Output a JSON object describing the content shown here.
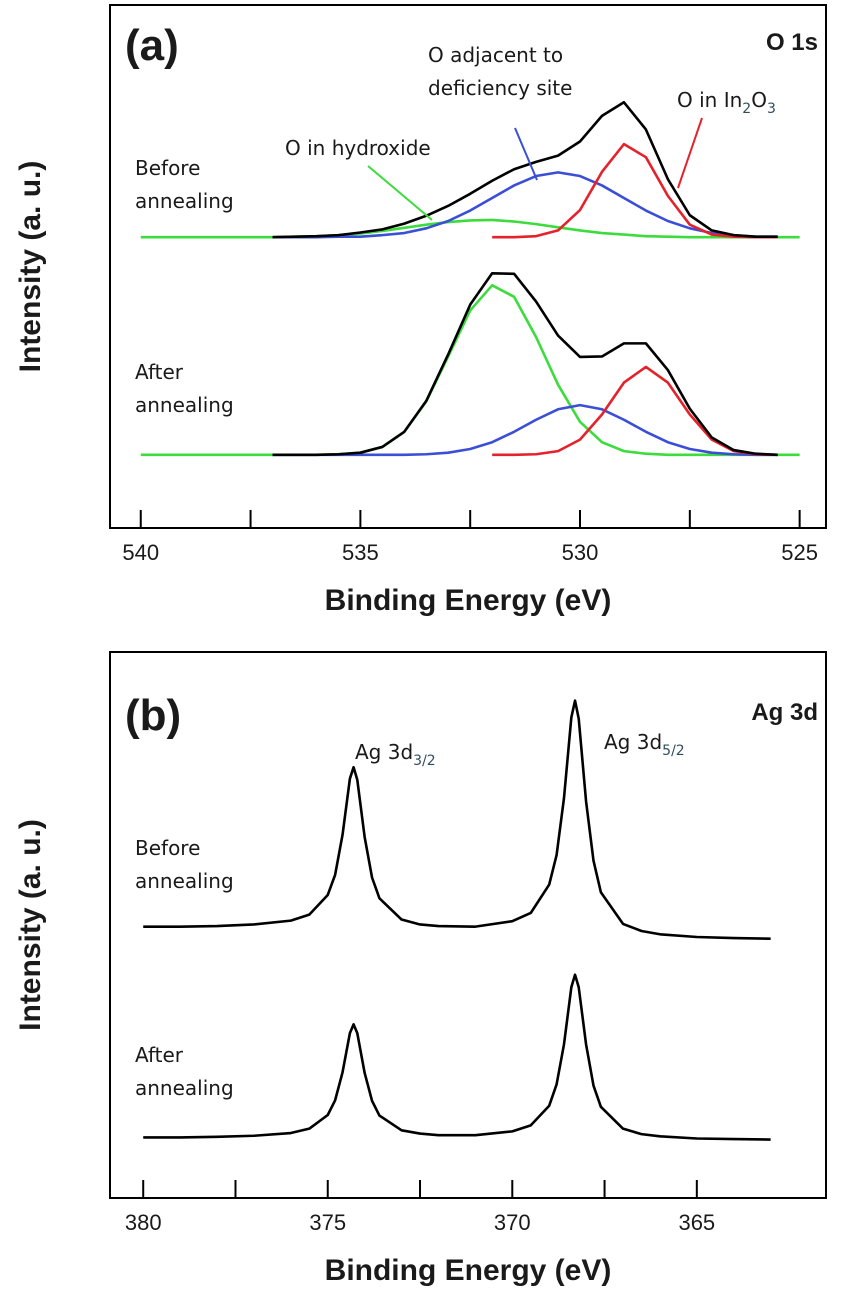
{
  "chart_data": [
    {
      "type": "line",
      "panel_label": "(a)",
      "spectrum_label": "O 1s",
      "x_label": "Binding Energy (eV)",
      "y_label": "Intensity (a. u.)",
      "xlim": [
        540.7,
        524.4
      ],
      "xticks": [
        540,
        535,
        530,
        525
      ],
      "xminorticks": [
        537.5,
        532.5,
        527.5
      ],
      "ylim": [
        0,
        100
      ],
      "x": [
        540,
        539.5,
        539,
        538.5,
        538,
        537.5,
        537,
        536.5,
        536,
        535.5,
        535,
        534.5,
        534,
        533.5,
        533,
        532.5,
        532,
        531.5,
        531,
        530.5,
        530,
        529.5,
        529,
        528.5,
        528,
        527.5,
        527,
        526.5,
        526,
        525.5,
        525
      ],
      "series": [
        {
          "color": "#3ddc3d",
          "values": [
            55.6,
            55.6,
            55.6,
            55.6,
            55.6,
            55.6,
            55.6,
            55.7,
            55.8,
            56.0,
            56.3,
            56.8,
            57.4,
            58.0,
            58.5,
            58.8,
            58.9,
            58.6,
            58.1,
            57.5,
            56.9,
            56.4,
            56.1,
            55.8,
            55.7,
            55.6,
            55.6,
            55.6,
            55.6,
            55.6,
            55.6
          ]
        },
        {
          "color": "#3b4fd6",
          "values": [
            null,
            null,
            null,
            null,
            null,
            null,
            55.6,
            55.6,
            55.6,
            55.7,
            55.7,
            56.0,
            56.4,
            57.3,
            58.7,
            60.7,
            63.1,
            65.5,
            67.3,
            68.0,
            67.3,
            65.5,
            63.1,
            60.7,
            58.7,
            57.3,
            56.4,
            56.0,
            55.7,
            55.7,
            null
          ]
        },
        {
          "color": "#e5222c",
          "values": [
            null,
            null,
            null,
            null,
            null,
            null,
            null,
            null,
            null,
            null,
            null,
            null,
            null,
            null,
            null,
            null,
            55.6,
            55.6,
            55.8,
            56.9,
            60.8,
            68.1,
            73.4,
            70.9,
            63.5,
            58.0,
            56.1,
            55.7,
            55.6,
            55.6,
            null
          ]
        },
        {
          "color": "#000000",
          "values": [
            null,
            null,
            null,
            null,
            null,
            null,
            55.6,
            55.7,
            55.8,
            56.0,
            56.5,
            57.1,
            58.2,
            59.7,
            61.6,
            63.9,
            66.4,
            68.6,
            70.0,
            71.2,
            73.9,
            78.8,
            81.4,
            76.2,
            66.7,
            59.8,
            56.9,
            56.0,
            55.7,
            55.7,
            null
          ]
        },
        {
          "color": "#3ddc3d",
          "values": [
            14.0,
            14.0,
            14.0,
            14.0,
            14.0,
            14.0,
            14.0,
            14.0,
            14.0,
            14.1,
            14.4,
            15.5,
            18.4,
            24.2,
            32.8,
            41.6,
            46.4,
            44.2,
            36.5,
            27.4,
            20.3,
            16.4,
            14.7,
            14.2,
            14.0,
            14.0,
            14.0,
            14.0,
            14.0,
            14.0,
            14.0
          ]
        },
        {
          "color": "#3b4fd6",
          "values": [
            null,
            null,
            null,
            null,
            null,
            null,
            14.0,
            14.0,
            14.0,
            14.0,
            14.0,
            14.0,
            14.0,
            14.1,
            14.4,
            15.1,
            16.4,
            18.4,
            20.7,
            22.7,
            23.5,
            22.7,
            20.7,
            18.4,
            16.4,
            15.1,
            14.4,
            14.1,
            14.0,
            14.0,
            null
          ]
        },
        {
          "color": "#e5222c",
          "values": [
            null,
            null,
            null,
            null,
            null,
            null,
            null,
            null,
            null,
            null,
            null,
            null,
            null,
            null,
            null,
            null,
            14.0,
            14.0,
            14.1,
            14.7,
            16.9,
            21.7,
            27.8,
            30.8,
            27.8,
            21.7,
            16.9,
            14.7,
            14.1,
            14.0,
            null
          ]
        },
        {
          "color": "#000000",
          "values": [
            null,
            null,
            null,
            null,
            null,
            null,
            14.0,
            14.0,
            14.0,
            14.1,
            14.4,
            15.5,
            18.4,
            24.3,
            33.2,
            42.7,
            48.7,
            48.6,
            43.3,
            36.8,
            32.7,
            32.8,
            35.3,
            35.3,
            30.2,
            22.8,
            17.3,
            14.9,
            14.2,
            14.0,
            null
          ]
        }
      ],
      "annotations": [
        {
          "lines": [
            "O adjacent to",
            "deficiency site"
          ]
        },
        {
          "lines": [
            "O in hydroxide"
          ]
        },
        {
          "lines": [
            [
              {
                "text": "O in In"
              },
              {
                "sub": "2"
              },
              {
                "text": "O"
              },
              {
                "sub": "3"
              }
            ]
          ]
        },
        {
          "lines": [
            "Before",
            "annealing"
          ]
        },
        {
          "lines": [
            "After",
            "annealing"
          ]
        }
      ]
    },
    {
      "type": "line",
      "panel_label": "(b)",
      "spectrum_label": "Ag 3d",
      "x_label": "Binding Energy (eV)",
      "y_label": "Intensity (a. u.)",
      "xlim": [
        380.9,
        361.5
      ],
      "xticks": [
        380,
        375,
        370,
        365
      ],
      "xminorticks": [
        377.5,
        372.5,
        367.5
      ],
      "ylim": [
        0,
        100
      ],
      "x": [
        380,
        379,
        378,
        377,
        376,
        375.5,
        375,
        374.8,
        374.6,
        374.4,
        374.3,
        374.2,
        374.0,
        373.8,
        373.6,
        373.0,
        372.5,
        372,
        371,
        370,
        369.5,
        369,
        368.8,
        368.6,
        368.4,
        368.3,
        368.2,
        368.0,
        367.8,
        367.6,
        367.0,
        366.5,
        366,
        365,
        364,
        363
      ],
      "series": [
        {
          "color": "#000000",
          "values": [
            49.7,
            49.7,
            49.8,
            50.1,
            50.8,
            51.9,
            55.5,
            59.2,
            66.5,
            76.8,
            78.9,
            76.6,
            66.1,
            58.7,
            54.9,
            51.0,
            50.1,
            49.8,
            49.7,
            50.7,
            52.2,
            57.4,
            62.8,
            73.2,
            88.0,
            91.1,
            87.8,
            72.6,
            61.8,
            56.0,
            50.2,
            48.9,
            48.3,
            47.8,
            47.6,
            47.5
          ]
        },
        {
          "color": "#000000",
          "values": [
            11.1,
            11.1,
            11.2,
            11.4,
            11.9,
            12.7,
            15.2,
            17.9,
            23.0,
            30.2,
            31.8,
            30.2,
            22.9,
            17.8,
            15.1,
            12.4,
            11.8,
            11.5,
            11.5,
            12.2,
            13.3,
            16.9,
            20.8,
            28.1,
            38.6,
            40.9,
            38.6,
            28.1,
            20.6,
            16.7,
            12.7,
            11.7,
            11.3,
            10.9,
            10.8,
            10.7
          ]
        }
      ],
      "annotations": [
        {
          "lines": [
            [
              {
                "text": "Ag 3d"
              },
              {
                "sub": "3/2"
              }
            ]
          ]
        },
        {
          "lines": [
            [
              {
                "text": "Ag 3d"
              },
              {
                "sub": "5/2"
              }
            ]
          ]
        },
        {
          "lines": [
            "Before",
            "annealing"
          ]
        },
        {
          "lines": [
            "After",
            "annealing"
          ]
        }
      ]
    }
  ]
}
